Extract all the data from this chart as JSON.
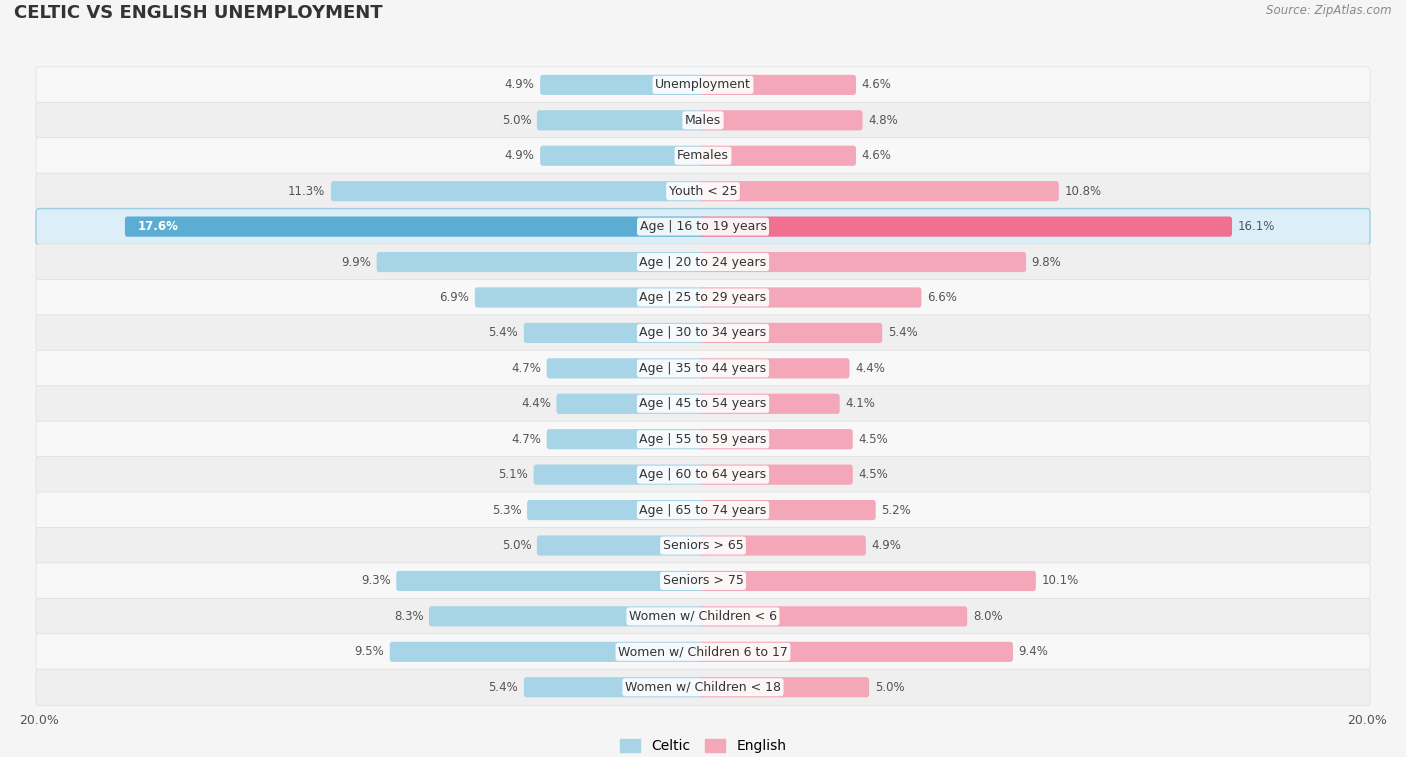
{
  "title": "CELTIC VS ENGLISH UNEMPLOYMENT",
  "source": "Source: ZipAtlas.com",
  "categories": [
    "Unemployment",
    "Males",
    "Females",
    "Youth < 25",
    "Age | 16 to 19 years",
    "Age | 20 to 24 years",
    "Age | 25 to 29 years",
    "Age | 30 to 34 years",
    "Age | 35 to 44 years",
    "Age | 45 to 54 years",
    "Age | 55 to 59 years",
    "Age | 60 to 64 years",
    "Age | 65 to 74 years",
    "Seniors > 65",
    "Seniors > 75",
    "Women w/ Children < 6",
    "Women w/ Children 6 to 17",
    "Women w/ Children < 18"
  ],
  "celtic_values": [
    4.9,
    5.0,
    4.9,
    11.3,
    17.6,
    9.9,
    6.9,
    5.4,
    4.7,
    4.4,
    4.7,
    5.1,
    5.3,
    5.0,
    9.3,
    8.3,
    9.5,
    5.4
  ],
  "english_values": [
    4.6,
    4.8,
    4.6,
    10.8,
    16.1,
    9.8,
    6.6,
    5.4,
    4.4,
    4.1,
    4.5,
    4.5,
    5.2,
    4.9,
    10.1,
    8.0,
    9.4,
    5.0
  ],
  "celtic_color": "#a8d4e8",
  "english_color": "#f4a7b9",
  "celtic_highlight_color": "#5badd4",
  "english_highlight_color": "#f07090",
  "row_color_odd": "#f0f0f0",
  "row_color_even": "#fafafa",
  "row_color_highlight": "#e8f4fc",
  "row_color_highlight_border": "#c0d8ec",
  "background_color": "#f5f5f5",
  "max_value": 20.0,
  "legend_celtic": "Celtic",
  "legend_english": "English",
  "title_fontsize": 13,
  "label_fontsize": 9,
  "value_fontsize": 8.5
}
